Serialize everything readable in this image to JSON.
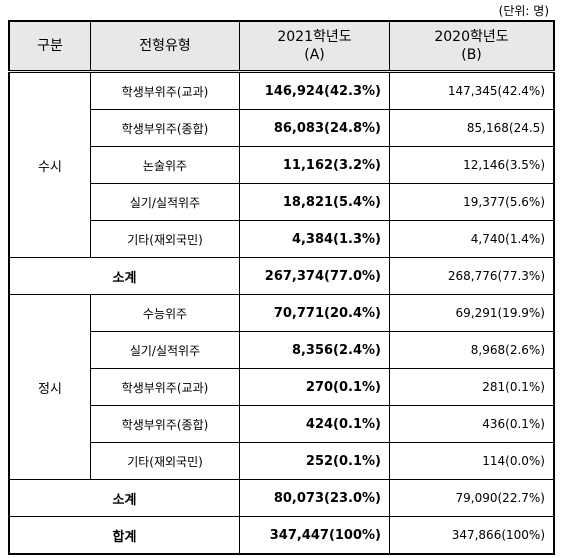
{
  "unit_note": "(단위: 명)",
  "table": {
    "header": {
      "group": "구분",
      "type": "전형유형",
      "col_a": [
        "2021학년도",
        "(A)"
      ],
      "col_b": [
        "2020학년도",
        "(B)"
      ]
    },
    "sections": [
      {
        "name": "수시",
        "rows": [
          [
            "학생부위주(교과)",
            "146,924(42.3%)",
            "147,345(42.4%)"
          ],
          [
            "학생부위주(종합)",
            "86,083(24.8%)",
            "85,168(24.5)"
          ],
          [
            "논술위주",
            "11,162(3.2%)",
            "12,146(3.5%)"
          ],
          [
            "실기/실적위주",
            "18,821(5.4%)",
            "19,377(5.6%)"
          ],
          [
            "기타(재외국민)",
            "4,384(1.3%)",
            "4,740(1.4%)"
          ]
        ],
        "subtotal": [
          "소계",
          "267,374(77.0%)",
          "268,776(77.3%)"
        ]
      },
      {
        "name": "정시",
        "rows": [
          [
            "수능위주",
            "70,771(20.4%)",
            "69,291(19.9%)"
          ],
          [
            "실기/실적위주",
            "8,356(2.4%)",
            "8,968(2.6%)"
          ],
          [
            "학생부위주(교과)",
            "270(0.1%)",
            "281(0.1%)"
          ],
          [
            "학생부위주(종합)",
            "424(0.1%)",
            "436(0.1%)"
          ],
          [
            "기타(재외국민)",
            "252(0.1%)",
            "114(0.0%)"
          ]
        ],
        "subtotal": [
          "소계",
          "80,073(23.0%)",
          "79,090(22.7%)"
        ]
      }
    ],
    "total": [
      "합계",
      "347,447(100%)",
      "347,866(100%)"
    ]
  }
}
